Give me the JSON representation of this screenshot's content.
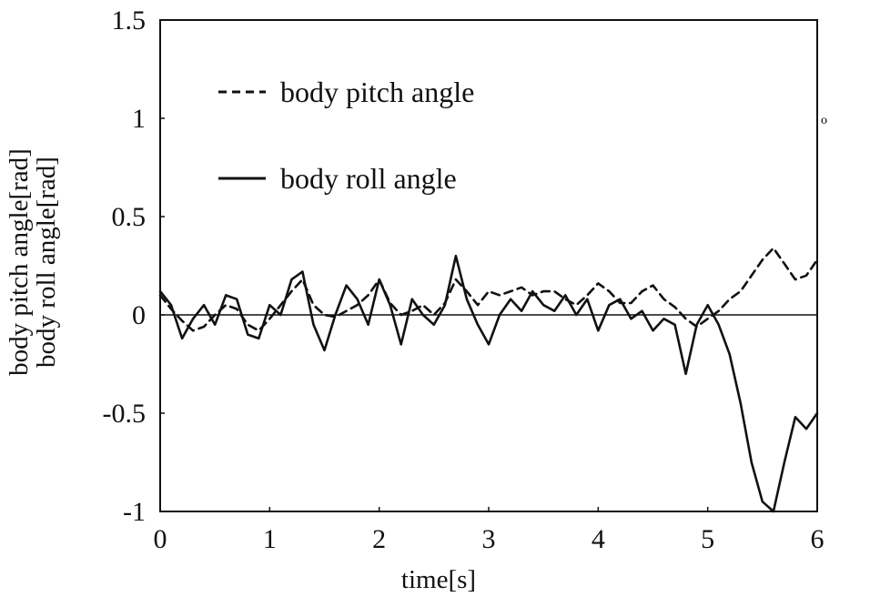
{
  "chart_data": {
    "type": "line",
    "title": "",
    "xlabel": "time[s]",
    "ylabel_lines": [
      "body pitch angle[rad]",
      "body roll angle[rad]"
    ],
    "xlim": [
      0,
      6
    ],
    "ylim": [
      -1.0,
      1.5
    ],
    "x_ticks": [
      0,
      1,
      2,
      3,
      4,
      5,
      6
    ],
    "x_tick_labels": [
      "0",
      "1",
      "2",
      "3",
      "4",
      "5",
      "6"
    ],
    "y_ticks": [
      1.5,
      1,
      0.5,
      0,
      -0.5,
      -1
    ],
    "y_tick_labels": [
      "1.5",
      "1",
      "0.5",
      "0",
      "-0.5",
      "-1"
    ],
    "zero_line": true,
    "grid": false,
    "legend_position": "top-left",
    "series": [
      {
        "name": "body pitch angle",
        "style": "dashed",
        "color": "#111111",
        "x": [
          0,
          0.1,
          0.2,
          0.3,
          0.4,
          0.5,
          0.6,
          0.7,
          0.8,
          0.9,
          1.0,
          1.1,
          1.2,
          1.3,
          1.4,
          1.5,
          1.6,
          1.7,
          1.8,
          1.9,
          2.0,
          2.1,
          2.2,
          2.3,
          2.4,
          2.5,
          2.6,
          2.7,
          2.8,
          2.9,
          3.0,
          3.1,
          3.2,
          3.3,
          3.4,
          3.5,
          3.6,
          3.7,
          3.8,
          3.9,
          4.0,
          4.1,
          4.2,
          4.3,
          4.4,
          4.5,
          4.6,
          4.7,
          4.8,
          4.9,
          5.0,
          5.1,
          5.2,
          5.3,
          5.4,
          5.5,
          5.6,
          5.7,
          5.8,
          5.9,
          6.0
        ],
        "y": [
          0.1,
          0.03,
          -0.03,
          -0.08,
          -0.06,
          0.0,
          0.05,
          0.03,
          -0.05,
          -0.08,
          -0.02,
          0.05,
          0.12,
          0.18,
          0.05,
          0.0,
          -0.01,
          0.02,
          0.05,
          0.1,
          0.18,
          0.06,
          0.0,
          0.02,
          0.05,
          0.0,
          0.06,
          0.18,
          0.12,
          0.05,
          0.12,
          0.1,
          0.12,
          0.14,
          0.1,
          0.12,
          0.12,
          0.08,
          0.05,
          0.1,
          0.16,
          0.12,
          0.06,
          0.06,
          0.12,
          0.15,
          0.08,
          0.04,
          -0.02,
          -0.06,
          -0.02,
          0.02,
          0.08,
          0.12,
          0.2,
          0.28,
          0.34,
          0.26,
          0.18,
          0.2,
          0.28
        ]
      },
      {
        "name": "body roll angle",
        "style": "solid",
        "color": "#111111",
        "x": [
          0,
          0.1,
          0.2,
          0.3,
          0.4,
          0.5,
          0.6,
          0.7,
          0.8,
          0.9,
          1.0,
          1.1,
          1.2,
          1.3,
          1.4,
          1.5,
          1.6,
          1.7,
          1.8,
          1.9,
          2.0,
          2.1,
          2.2,
          2.3,
          2.4,
          2.5,
          2.6,
          2.7,
          2.8,
          2.9,
          3.0,
          3.1,
          3.2,
          3.3,
          3.4,
          3.5,
          3.6,
          3.7,
          3.8,
          3.9,
          4.0,
          4.1,
          4.2,
          4.3,
          4.4,
          4.5,
          4.6,
          4.7,
          4.8,
          4.9,
          5.0,
          5.1,
          5.2,
          5.3,
          5.4,
          5.5,
          5.6,
          5.7,
          5.8,
          5.9,
          6.0
        ],
        "y": [
          0.12,
          0.05,
          -0.12,
          -0.02,
          0.05,
          -0.05,
          0.1,
          0.08,
          -0.1,
          -0.12,
          0.05,
          0.0,
          0.18,
          0.22,
          -0.05,
          -0.18,
          0.0,
          0.15,
          0.08,
          -0.05,
          0.18,
          0.05,
          -0.15,
          0.08,
          0.0,
          -0.05,
          0.05,
          0.3,
          0.08,
          -0.05,
          -0.15,
          0.0,
          0.08,
          0.02,
          0.12,
          0.05,
          0.02,
          0.1,
          0.0,
          0.08,
          -0.08,
          0.05,
          0.08,
          -0.02,
          0.02,
          -0.08,
          -0.02,
          -0.05,
          -0.3,
          -0.05,
          0.05,
          -0.05,
          -0.2,
          -0.45,
          -0.75,
          -0.95,
          -1.0,
          -0.75,
          -0.52,
          -0.58,
          -0.5
        ]
      }
    ],
    "margin_note": "o"
  }
}
